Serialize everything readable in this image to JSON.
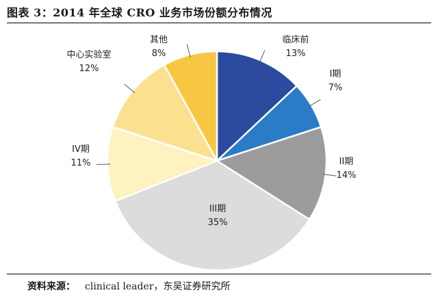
{
  "figure": {
    "title": "图表 3：2014 年全球 CRO 业务市场份额分布情况",
    "source_label": "资料来源：",
    "source_text": "clinical leader，东吴证券研究所"
  },
  "chart_data": {
    "type": "pie",
    "title": "",
    "start_angle_deg": 0,
    "direction": "clockwise",
    "slices": [
      {
        "label": "临床前",
        "value": 13,
        "value_label": "13%",
        "color": "#2c4a9e"
      },
      {
        "label": "I期",
        "value": 7,
        "value_label": "7%",
        "color": "#2a7cc7"
      },
      {
        "label": "II期",
        "value": 14,
        "value_label": "14%",
        "color": "#9c9c9c"
      },
      {
        "label": "III期",
        "value": 35,
        "value_label": "35%",
        "color": "#dcdcdc"
      },
      {
        "label": "IV期",
        "value": 11,
        "value_label": "11%",
        "color": "#fdf2c0"
      },
      {
        "label": "中心实验室",
        "value": 12,
        "value_label": "12%",
        "color": "#fbe08f"
      },
      {
        "label": "其他",
        "value": 8,
        "value_label": "8%",
        "color": "#f7c744"
      }
    ]
  }
}
